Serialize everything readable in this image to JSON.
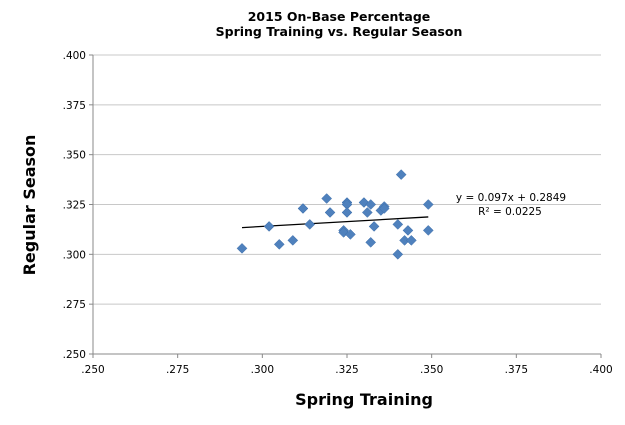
{
  "chart_data": {
    "type": "scatter",
    "title": "2015 On-Base Percentage",
    "subtitle": "Spring Training vs. Regular Season",
    "xlabel": "Spring Training",
    "ylabel": "Regular Season",
    "xlim": [
      0.25,
      0.4
    ],
    "ylim": [
      0.25,
      0.4
    ],
    "xticks": [
      0.25,
      0.275,
      0.3,
      0.325,
      0.35,
      0.375,
      0.4
    ],
    "xtick_labels": [
      ".250",
      ".275",
      ".300",
      ".325",
      ".350",
      ".375",
      ".400"
    ],
    "yticks": [
      0.25,
      0.275,
      0.3,
      0.325,
      0.35,
      0.375,
      0.4
    ],
    "ytick_labels": [
      ".250",
      ".275",
      ".300",
      ".325",
      ".350",
      ".375",
      ".400"
    ],
    "grid": "horizontal",
    "marker_color": "#4f81bd",
    "trendline": {
      "slope": 0.097,
      "intercept": 0.2849
    },
    "annotations": [
      "y = 0.097x + 0.2849",
      "R² = 0.0225"
    ],
    "points": [
      {
        "x": 0.294,
        "y": 0.303
      },
      {
        "x": 0.302,
        "y": 0.314
      },
      {
        "x": 0.305,
        "y": 0.305
      },
      {
        "x": 0.309,
        "y": 0.307
      },
      {
        "x": 0.312,
        "y": 0.323
      },
      {
        "x": 0.314,
        "y": 0.315
      },
      {
        "x": 0.319,
        "y": 0.328
      },
      {
        "x": 0.32,
        "y": 0.321
      },
      {
        "x": 0.324,
        "y": 0.312
      },
      {
        "x": 0.324,
        "y": 0.311
      },
      {
        "x": 0.325,
        "y": 0.326
      },
      {
        "x": 0.325,
        "y": 0.325
      },
      {
        "x": 0.325,
        "y": 0.321
      },
      {
        "x": 0.326,
        "y": 0.31
      },
      {
        "x": 0.33,
        "y": 0.326
      },
      {
        "x": 0.331,
        "y": 0.321
      },
      {
        "x": 0.332,
        "y": 0.325
      },
      {
        "x": 0.332,
        "y": 0.306
      },
      {
        "x": 0.333,
        "y": 0.314
      },
      {
        "x": 0.335,
        "y": 0.322
      },
      {
        "x": 0.336,
        "y": 0.324
      },
      {
        "x": 0.336,
        "y": 0.323
      },
      {
        "x": 0.34,
        "y": 0.315
      },
      {
        "x": 0.34,
        "y": 0.3
      },
      {
        "x": 0.341,
        "y": 0.34
      },
      {
        "x": 0.342,
        "y": 0.307
      },
      {
        "x": 0.343,
        "y": 0.312
      },
      {
        "x": 0.344,
        "y": 0.307
      },
      {
        "x": 0.349,
        "y": 0.325
      },
      {
        "x": 0.349,
        "y": 0.312
      }
    ]
  }
}
